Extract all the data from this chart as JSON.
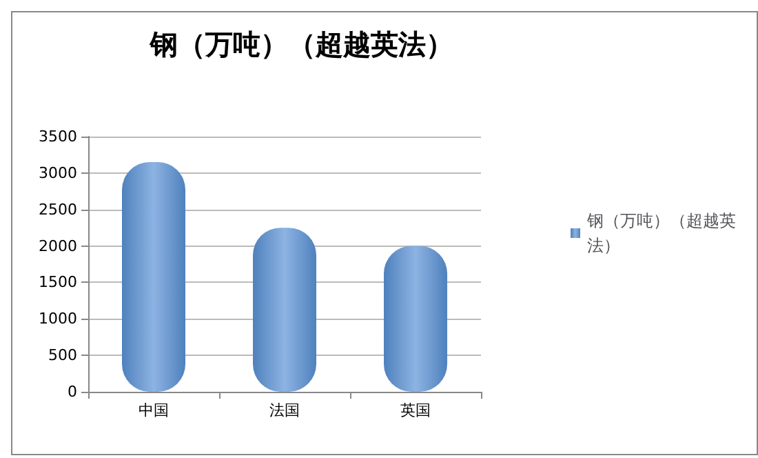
{
  "chart_data": {
    "type": "bar",
    "title": "钢（万吨）（超越英法）",
    "categories": [
      "中国",
      "法国",
      "英国"
    ],
    "series": [
      {
        "name": "钢（万吨）（超越英法）",
        "color": "#4f81bd",
        "values": [
          3150,
          2250,
          2000
        ]
      }
    ],
    "ylim": [
      0,
      3500
    ],
    "yticks": [
      0,
      500,
      1000,
      1500,
      2000,
      2500,
      3000,
      3500
    ],
    "grid": "y",
    "legend": "right"
  }
}
